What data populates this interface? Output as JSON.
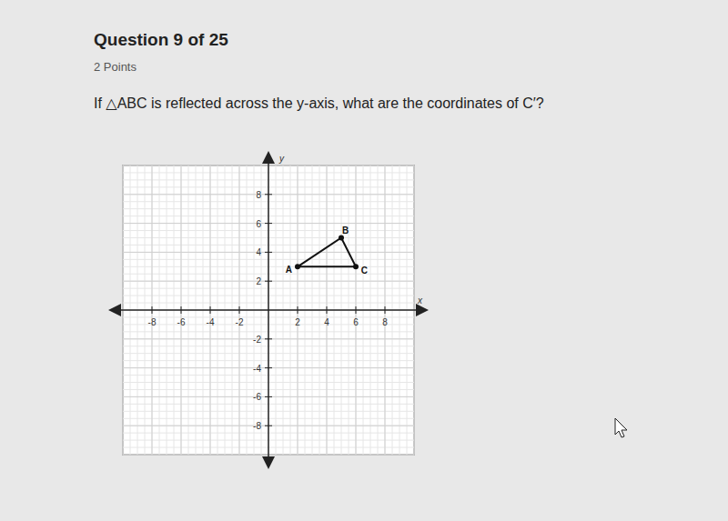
{
  "header": {
    "title": "Question 9 of 25",
    "points": "2 Points"
  },
  "question": "If △ABC is reflected across the y-axis, what are the coordinates of C′?",
  "chart_data": {
    "type": "polygon",
    "xlabel": "x",
    "ylabel": "y",
    "x": [
      2,
      5,
      6
    ],
    "values": [
      3,
      5,
      3
    ],
    "point_labels": [
      "A",
      "B",
      "C"
    ],
    "xlim": [
      -10,
      10
    ],
    "ylim": [
      -10,
      10
    ],
    "xticks": [
      -8,
      -6,
      -4,
      -2,
      2,
      4,
      6,
      8
    ],
    "yticks": [
      -8,
      -6,
      -4,
      -2,
      2,
      4,
      6,
      8
    ],
    "grid": true,
    "marker": "circle"
  }
}
